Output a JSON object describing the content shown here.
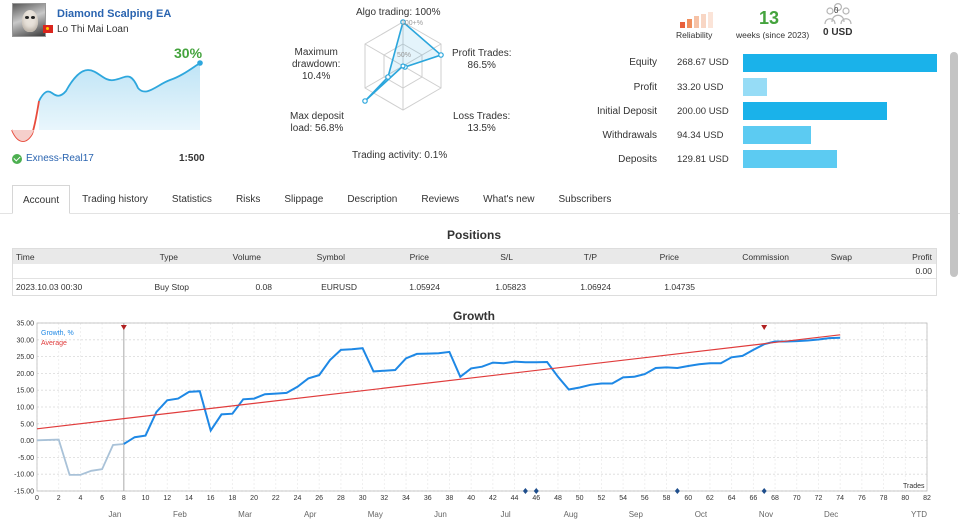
{
  "header": {
    "ea_name": "Diamond Scalping EA",
    "author": "Lo Thi Mai Loan",
    "growth_percent": "30%",
    "broker": "Exness-Real17",
    "leverage": "1:500"
  },
  "radar": {
    "algo_trading": "Algo trading: 100%",
    "profit_trades": [
      "Profit Trades:",
      "86.5%"
    ],
    "loss_trades": [
      "Loss Trades:",
      "13.5%"
    ],
    "trading_activity": "Trading activity: 0.1%",
    "max_deposit_load": [
      "Max deposit",
      "load: 56.8%"
    ],
    "max_drawdown": [
      "Maximum",
      "drawdown:",
      "10.4%"
    ],
    "scale_100": "100+%",
    "scale_50": "50%"
  },
  "stats": {
    "reliability_label": "Reliability",
    "weeks_value": "13",
    "weeks_label": "weeks (since 2023)",
    "subscribers_count": "0",
    "subscribers_value": "0 USD"
  },
  "financials": [
    {
      "label": "Equity",
      "value": "268.67 USD",
      "ratio": 1.0,
      "color": "#1ab2ea"
    },
    {
      "label": "Profit",
      "value": "33.20 USD",
      "ratio": 0.124,
      "color": "#96dcf6"
    },
    {
      "label": "Initial Deposit",
      "value": "200.00 USD",
      "ratio": 0.744,
      "color": "#1ab2ea"
    },
    {
      "label": "Withdrawals",
      "value": "94.34 USD",
      "ratio": 0.351,
      "color": "#5ccbf2"
    },
    {
      "label": "Deposits",
      "value": "129.81 USD",
      "ratio": 0.483,
      "color": "#5ccbf2"
    }
  ],
  "tabs": [
    {
      "label": "Account",
      "active": true
    },
    {
      "label": "Trading history"
    },
    {
      "label": "Statistics"
    },
    {
      "label": "Risks"
    },
    {
      "label": "Slippage"
    },
    {
      "label": "Description"
    },
    {
      "label": "Reviews"
    },
    {
      "label": "What's new"
    },
    {
      "label": "Subscribers"
    }
  ],
  "positions": {
    "title": "Positions",
    "headers": [
      "Time",
      "Type",
      "Volume",
      "Symbol",
      "Price",
      "S/L",
      "T/P",
      "Price",
      "Commission",
      "Swap",
      "Profit"
    ],
    "total_profit": "0.00",
    "rows": [
      [
        "2023.10.03 00:30",
        "Buy Stop",
        "0.08",
        "EURUSD",
        "1.05924",
        "1.05823",
        "1.06924",
        "1.04735",
        "",
        "",
        ""
      ]
    ]
  },
  "growth": {
    "title": "Growth",
    "legend_growth": "Growth, %",
    "legend_average": "Average",
    "trades_label": "Trades",
    "ytd_label": "YTD",
    "months": [
      "Jan",
      "Feb",
      "Mar",
      "Apr",
      "May",
      "Jun",
      "Jul",
      "Aug",
      "Sep",
      "Oct",
      "Nov",
      "Dec"
    ],
    "colors": {
      "growth": "#1e88e5",
      "pre": "#a9c2d8",
      "average": "#e03c3c"
    }
  },
  "chart_data": {
    "type": "line",
    "title": "Growth",
    "xlabel": "Trades",
    "ylabel": "",
    "xlim": [
      0,
      82
    ],
    "ylim": [
      -15,
      35
    ],
    "x_ticks": [
      0,
      2,
      4,
      6,
      8,
      10,
      12,
      14,
      16,
      18,
      20,
      22,
      24,
      26,
      28,
      30,
      32,
      34,
      36,
      38,
      40,
      42,
      44,
      46,
      48,
      50,
      52,
      54,
      56,
      58,
      60,
      62,
      64,
      66,
      68,
      70,
      72,
      74,
      76,
      78,
      80,
      82
    ],
    "y_ticks": [
      -15,
      -10,
      -5,
      0,
      5,
      10,
      15,
      20,
      25,
      30,
      35
    ],
    "legend": "top-left",
    "grid": true,
    "series": [
      {
        "name": "Growth, %",
        "x": [
          0,
          2,
          3,
          4,
          5,
          6,
          7,
          8,
          9,
          10,
          11,
          12,
          13,
          14,
          15,
          16,
          17,
          18,
          19,
          20,
          21,
          22,
          23,
          24,
          25,
          26,
          27,
          28,
          29,
          30,
          31,
          32,
          33,
          34,
          35,
          36,
          37,
          38,
          39,
          40,
          41,
          42,
          43,
          44,
          45,
          46,
          47,
          48,
          49,
          50,
          51,
          52,
          53,
          54,
          55,
          56,
          57,
          58,
          59,
          60,
          61,
          62,
          63,
          64,
          65,
          66,
          67,
          68,
          69,
          70,
          71,
          72,
          73,
          74
        ],
        "values": [
          0.1,
          0.3,
          -10.2,
          -10.2,
          -9.0,
          -8.5,
          -1.3,
          -1.0,
          1.0,
          1.5,
          8.5,
          12.0,
          12.5,
          14.5,
          14.7,
          3.0,
          7.8,
          8.0,
          12.3,
          12.5,
          13.8,
          14.0,
          14.2,
          16.0,
          18.5,
          19.5,
          24.0,
          27.0,
          27.2,
          27.5,
          20.6,
          20.8,
          21.0,
          24.5,
          25.8,
          25.9,
          26.0,
          26.4,
          19.0,
          21.5,
          22.0,
          23.2,
          23.0,
          23.5,
          23.3,
          23.3,
          23.4,
          19.0,
          15.2,
          15.8,
          16.6,
          17.0,
          17.0,
          18.8,
          19.0,
          19.8,
          21.6,
          21.8,
          21.6,
          22.2,
          22.7,
          23.0,
          23.0,
          24.8,
          25.2,
          27.0,
          28.7,
          29.5,
          29.5,
          29.6,
          29.8,
          30.1,
          30.5,
          30.6
        ]
      },
      {
        "name": "Average",
        "x": [
          0,
          74
        ],
        "values": [
          3.5,
          31.5
        ]
      }
    ]
  }
}
